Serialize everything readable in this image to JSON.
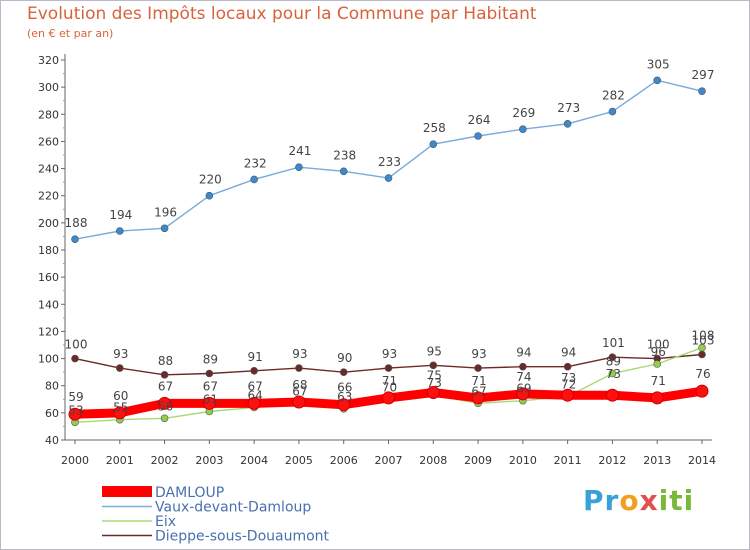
{
  "header": {
    "title": "Evolution des Impôts locaux pour la Commune par Habitant",
    "subtitle": "(en € et par an)"
  },
  "logo": {
    "text": "Proxiti"
  },
  "chart_data": {
    "type": "line",
    "title": "Evolution des Impôts locaux pour la Commune par Habitant",
    "subtitle": "(en € et par an)",
    "xlabel": "",
    "ylabel": "",
    "x": [
      "2000",
      "2001",
      "2002",
      "2003",
      "2004",
      "2005",
      "2006",
      "2007",
      "2008",
      "2009",
      "2010",
      "2011",
      "2012",
      "2013",
      "2014"
    ],
    "ylim": [
      40,
      320
    ],
    "yticks": [
      40,
      60,
      80,
      100,
      120,
      140,
      160,
      180,
      200,
      220,
      240,
      260,
      280,
      300,
      320
    ],
    "grid": false,
    "legend_placement": "bottom-left",
    "series": [
      {
        "name": "DAMLOUP",
        "color": "#ff0000",
        "values": [
          59,
          60,
          67,
          67,
          67,
          68,
          66,
          71,
          75,
          71,
          74,
          73,
          73,
          71,
          76
        ]
      },
      {
        "name": "Vaux-devant-Damloup",
        "color": "#7aaad8",
        "values": [
          188,
          194,
          196,
          220,
          232,
          241,
          238,
          233,
          258,
          264,
          269,
          273,
          282,
          305,
          297
        ]
      },
      {
        "name": "Eix",
        "color": "#9acd5a",
        "values": [
          53,
          55,
          56,
          61,
          64,
          67,
          63,
          70,
          73,
          67,
          69,
          72,
          89,
          96,
          108
        ]
      },
      {
        "name": "Dieppe-sous-Douaumont",
        "color": "#6b2a2a",
        "values": [
          100,
          93,
          88,
          89,
          91,
          93,
          90,
          93,
          95,
          93,
          94,
          94,
          101,
          100,
          103
        ]
      }
    ]
  }
}
